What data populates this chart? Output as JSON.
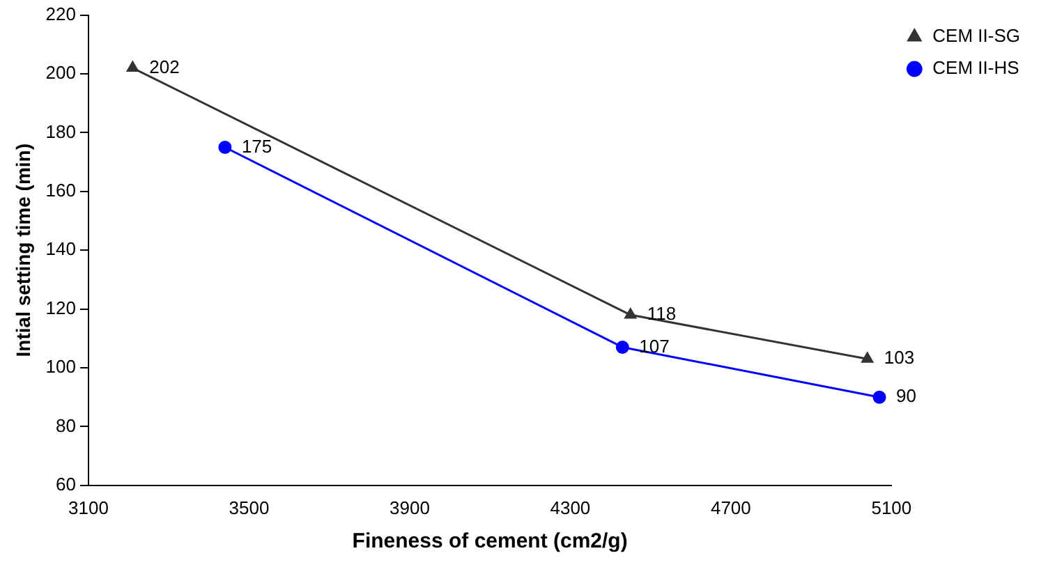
{
  "chart_data": {
    "type": "line",
    "xlabel": "Fineness of cement (cm2/g)",
    "ylabel": "Intial setting time (min)",
    "xlim": [
      3100,
      5100
    ],
    "xticks": [
      3100,
      3500,
      3900,
      4300,
      4700,
      5100
    ],
    "ylim": [
      60,
      220
    ],
    "yticks": [
      60,
      80,
      100,
      120,
      140,
      160,
      180,
      200,
      220
    ],
    "grid": false,
    "legend": "right",
    "data_labels": true,
    "line_style": "solid",
    "series": [
      {
        "name": "CEM II-SG",
        "color": "#333333",
        "marker": "triangle",
        "x": [
          3210,
          4450,
          5040
        ],
        "values": [
          202,
          118,
          103
        ]
      },
      {
        "name": "CEM II-HS",
        "color": "#0000ff",
        "marker": "circle",
        "x": [
          3440,
          4430,
          5070
        ],
        "values": [
          175,
          107,
          90
        ]
      }
    ]
  }
}
